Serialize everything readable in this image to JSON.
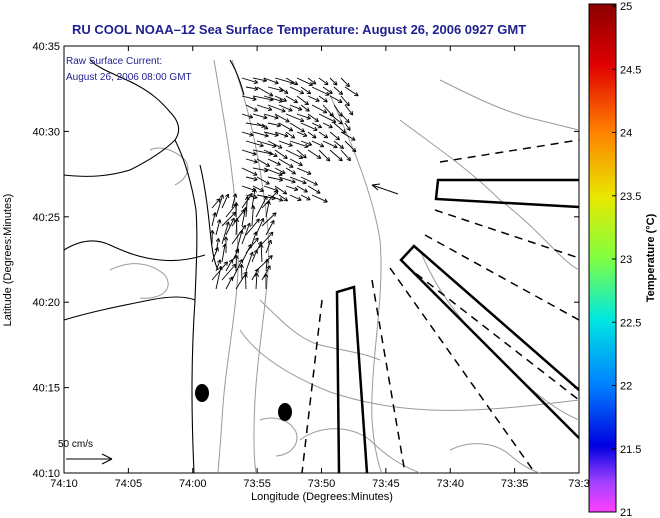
{
  "title": "RU COOL  NOAA–12  Sea Surface Temperature:  August 26, 2006 0927 GMT",
  "annotation": {
    "line1": "Raw Surface Current:",
    "line2": "August 26, 2006 08:00 GMT"
  },
  "scale": {
    "label": "50 cm/s"
  },
  "axes": {
    "xlabel": "Longitude (Degrees:Minutes)",
    "ylabel": "Latitude (Degrees:Minutes)",
    "xticks": [
      "74:10",
      "74:05",
      "74:00",
      "73:55",
      "73:50",
      "73:45",
      "73:40",
      "73:35",
      "73:3"
    ],
    "yticks": [
      "40:35",
      "40:30",
      "40:25",
      "40:20",
      "40:15",
      "40:10"
    ]
  },
  "colorbar": {
    "label": "Temperature (°C)",
    "ticks": [
      "25",
      "24.5",
      "24",
      "23.5",
      "23",
      "22.5",
      "22",
      "21.5",
      "21"
    ],
    "range": [
      21,
      25
    ]
  },
  "colors": {
    "title": "#1f1f8f",
    "annotation": "#1f1f8f",
    "coast": "#000000",
    "bathymetry": "#9a9a9a",
    "vectors": "#000000"
  }
}
